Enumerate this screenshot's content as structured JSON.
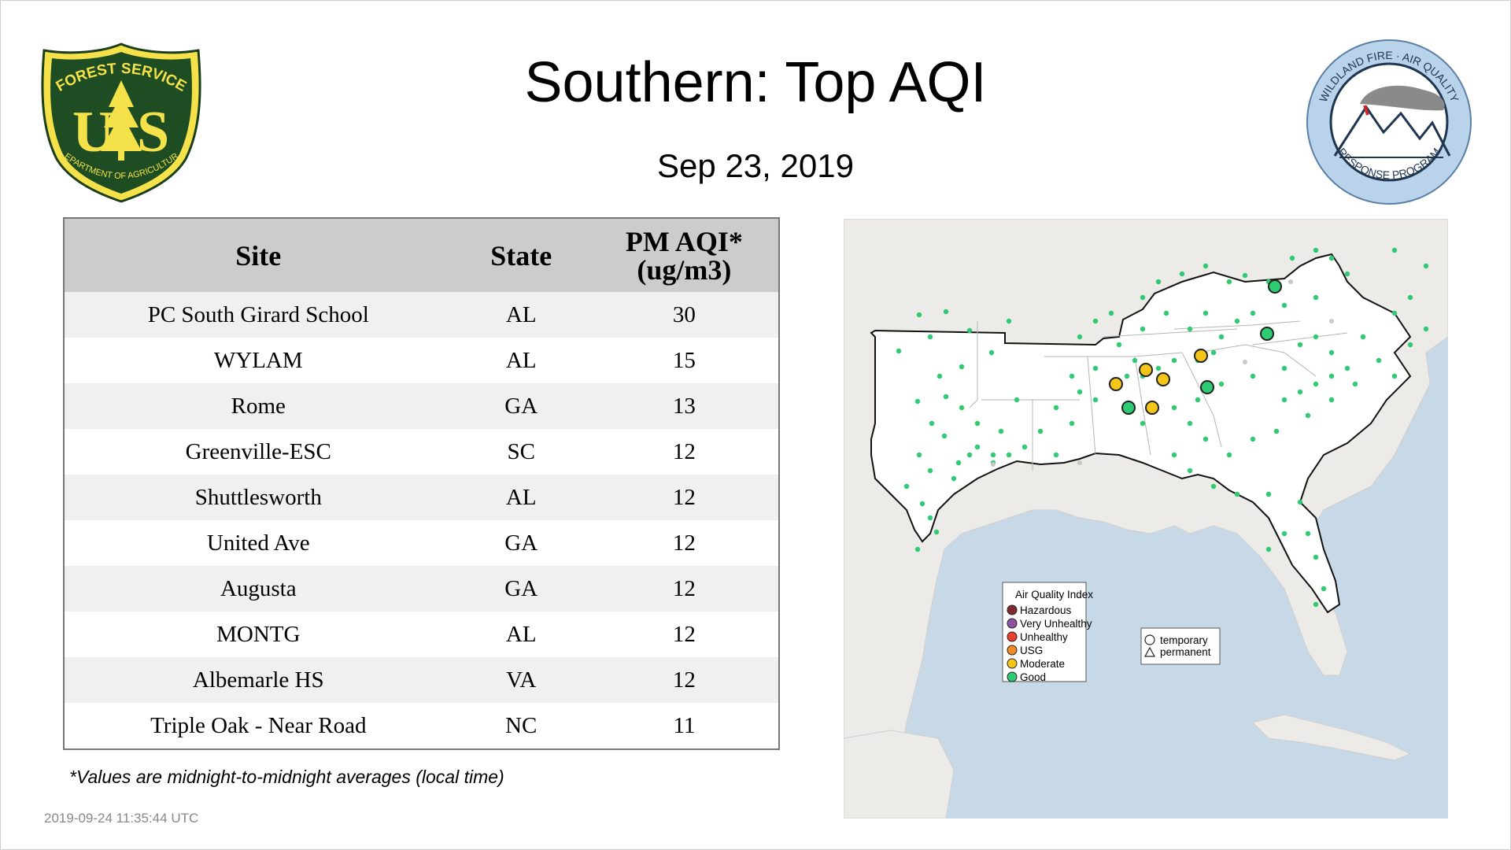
{
  "header": {
    "title": "Southern: Top AQI",
    "date": "Sep 23, 2019"
  },
  "logos": {
    "forest_service": {
      "top_text": "FOREST SERVICE",
      "bottom_text": "DEPARTMENT OF AGRICULTURE",
      "letters_left": "U",
      "letters_right": "S"
    },
    "wildland_fire": {
      "top_text": "WILDLAND FIRE · AIR QUALITY",
      "bottom_text": "RESPONSE PROGRAM"
    }
  },
  "table": {
    "headers": {
      "site": "Site",
      "state": "State",
      "aqi_line1": "PM AQI*",
      "aqi_line2": "(ug/m3)"
    },
    "rows": [
      {
        "site": "PC South Girard School",
        "state": "AL",
        "aqi": "30"
      },
      {
        "site": "WYLAM",
        "state": "AL",
        "aqi": "15"
      },
      {
        "site": "Rome",
        "state": "GA",
        "aqi": "13"
      },
      {
        "site": "Greenville-ESC",
        "state": "SC",
        "aqi": "12"
      },
      {
        "site": "Shuttlesworth",
        "state": "AL",
        "aqi": "12"
      },
      {
        "site": "United Ave",
        "state": "GA",
        "aqi": "12"
      },
      {
        "site": "Augusta",
        "state": "GA",
        "aqi": "12"
      },
      {
        "site": "MONTG",
        "state": "AL",
        "aqi": "12"
      },
      {
        "site": "Albemarle HS",
        "state": "VA",
        "aqi": "12"
      },
      {
        "site": "Triple Oak - Near Road",
        "state": "NC",
        "aqi": "11"
      }
    ]
  },
  "footnote": "*Values are midnight-to-midnight averages (local time)",
  "timestamp": "2019-09-24 11:35:44 UTC",
  "map": {
    "legend_title": "Air Quality Index",
    "aqi_levels": [
      {
        "label": "Hazardous",
        "color": "#7e2a2e"
      },
      {
        "label": "Very Unhealthy",
        "color": "#8e4fa6"
      },
      {
        "label": "Unhealthy",
        "color": "#e8402c"
      },
      {
        "label": "USG",
        "color": "#f08a24"
      },
      {
        "label": "Moderate",
        "color": "#f5c518"
      },
      {
        "label": "Good",
        "color": "#2ecc71"
      }
    ],
    "monitor_types": [
      {
        "label": "temporary",
        "shape": "circle"
      },
      {
        "label": "permanent",
        "shape": "triangle"
      }
    ],
    "colors": {
      "ocean": "#c7d8e6",
      "land": "#ecebe8",
      "region": "#ffffff",
      "sensor": "#2ecc71",
      "inactive": "#c8c8c8"
    }
  }
}
